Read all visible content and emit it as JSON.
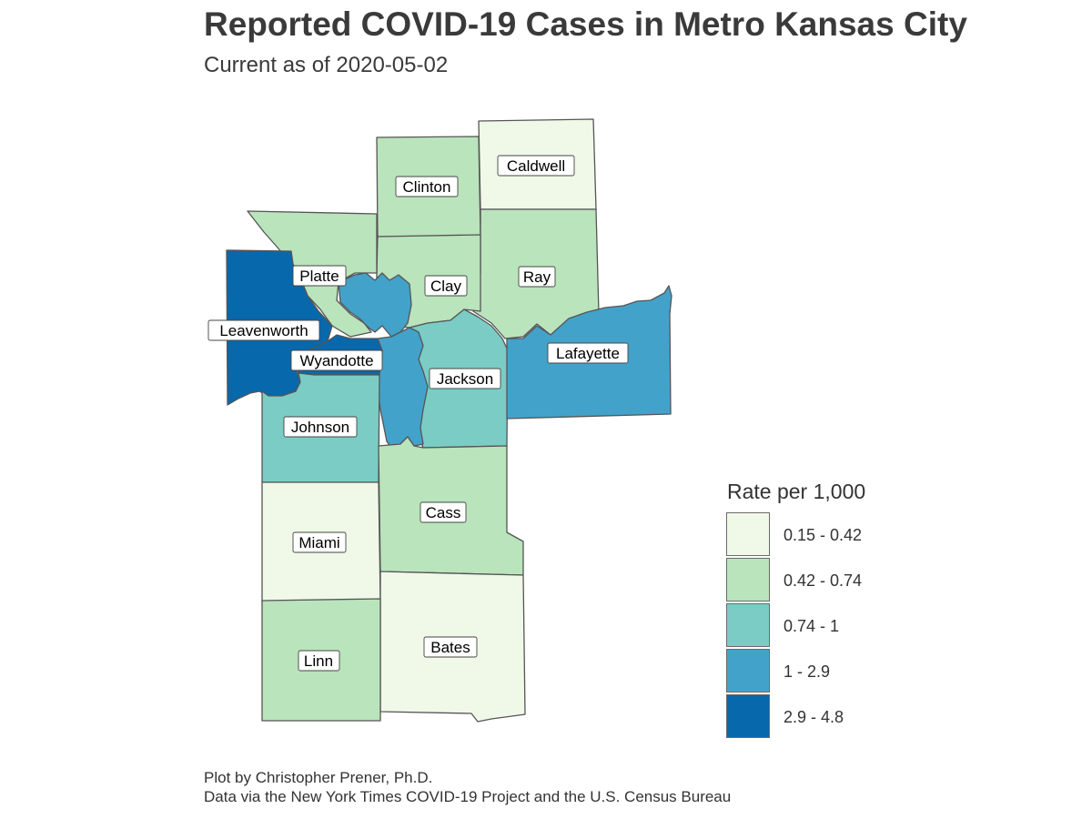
{
  "title": "Reported COVID-19 Cases in Metro Kansas City",
  "subtitle": "Current as of 2020-05-02",
  "legend": {
    "title": "Rate per 1,000",
    "classes": [
      {
        "label": "0.15 - 0.42",
        "color": "#f0f9e8"
      },
      {
        "label": "0.42 - 0.74",
        "color": "#bae4bc"
      },
      {
        "label": "0.74 - 1",
        "color": "#7bccc4"
      },
      {
        "label": "1 - 2.9",
        "color": "#43a2ca"
      },
      {
        "label": "2.9 - 4.8",
        "color": "#0868ac"
      }
    ]
  },
  "counties": [
    {
      "name": "Caldwell",
      "rate_class": 0
    },
    {
      "name": "Clinton",
      "rate_class": 1
    },
    {
      "name": "Ray",
      "rate_class": 1
    },
    {
      "name": "Clay",
      "rate_class": 1
    },
    {
      "name": "Platte",
      "rate_class": 1
    },
    {
      "name": "Leavenworth",
      "rate_class": 4
    },
    {
      "name": "Wyandotte",
      "rate_class": 4
    },
    {
      "name": "Lafayette",
      "rate_class": 3
    },
    {
      "name": "Jackson",
      "rate_class": 2
    },
    {
      "name": "Johnson",
      "rate_class": 2
    },
    {
      "name": "Cass",
      "rate_class": 1
    },
    {
      "name": "Miami",
      "rate_class": 0
    },
    {
      "name": "Bates",
      "rate_class": 0
    },
    {
      "name": "Linn",
      "rate_class": 1
    }
  ],
  "caption": {
    "line1": "Plot by Christopher Prener, Ph.D.",
    "line2": "Data via the New York Times COVID-19 Project and the U.S. Census Bureau"
  }
}
